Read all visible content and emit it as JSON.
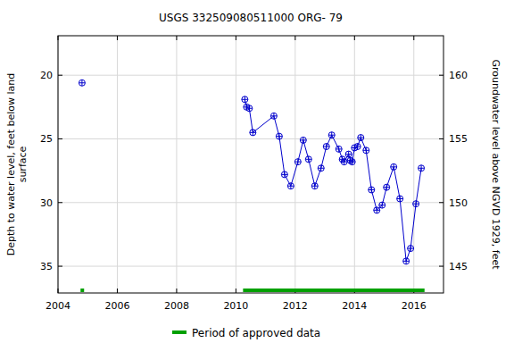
{
  "chart_data": {
    "type": "line",
    "title": "USGS 332509080511000 ORG-  79",
    "ylabel": [
      "Depth to water level, feet below land",
      "surface"
    ],
    "y2label": "Groundwater level above NGVD 1929, feet",
    "xlim": [
      2004,
      2017
    ],
    "xticks": [
      2004,
      2006,
      2008,
      2010,
      2012,
      2014,
      2016
    ],
    "ylim": [
      37.1,
      16.9
    ],
    "yticks": [
      20,
      25,
      30,
      35
    ],
    "y2lim": [
      142.9,
      163.1
    ],
    "y2ticks": [
      145,
      150,
      155,
      160
    ],
    "grid": true,
    "series": [
      {
        "color": "#0000cc",
        "marker": "circle-plus",
        "line_style": "solid",
        "x": [
          2004.81,
          null,
          2010.3,
          2010.36,
          2010.45,
          2010.57,
          2011.28,
          2011.46,
          2011.64,
          2011.85,
          2012.09,
          2012.27,
          2012.45,
          2012.66,
          2012.87,
          2013.05,
          2013.23,
          2013.47,
          2013.59,
          2013.65,
          2013.8,
          2013.86,
          2013.92,
          2014.0,
          2014.1,
          2014.21,
          2014.39,
          2014.57,
          2014.75,
          2014.93,
          2015.08,
          2015.32,
          2015.53,
          2015.74,
          2015.89,
          2016.07,
          2016.25
        ],
        "values": [
          20.6,
          null,
          21.9,
          22.5,
          22.6,
          24.5,
          23.2,
          24.8,
          27.8,
          28.7,
          26.8,
          25.1,
          26.6,
          28.7,
          27.3,
          25.6,
          24.7,
          25.8,
          26.6,
          26.8,
          26.2,
          26.7,
          26.8,
          25.7,
          25.6,
          24.9,
          25.9,
          29.0,
          30.6,
          30.2,
          28.8,
          27.2,
          29.7,
          34.6,
          33.6,
          30.1,
          27.3
        ]
      }
    ],
    "periods": {
      "name": "Period of approved data",
      "color": "#00a000",
      "ranges": [
        [
          2004.76,
          2004.88
        ],
        [
          2010.24,
          2016.36
        ]
      ]
    }
  }
}
